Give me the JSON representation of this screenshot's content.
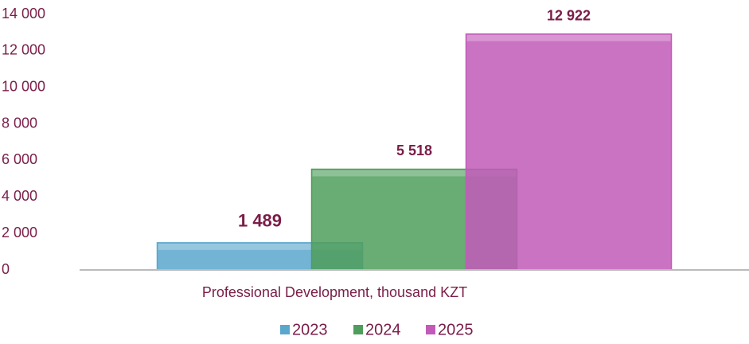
{
  "chart_data": {
    "type": "bar",
    "categories": [
      "Professional Development, thousand KZT"
    ],
    "series": [
      {
        "name": "2023",
        "color": "#5aa7cc",
        "values": [
          1489
        ],
        "value_labels": [
          "1 489"
        ]
      },
      {
        "name": "2024",
        "color": "#4f9d5c",
        "values": [
          5518
        ],
        "value_labels": [
          "5 518"
        ]
      },
      {
        "name": "2025",
        "color": "#c25bb8",
        "values": [
          12922
        ],
        "value_labels": [
          "12 922"
        ]
      }
    ],
    "ylim": [
      0,
      14000
    ],
    "yticks": [
      0,
      {
        "value": 2000,
        "label": "2 000"
      },
      {
        "value": 4000,
        "label": "4 000"
      },
      {
        "value": 6000,
        "label": "6 000"
      },
      {
        "value": 8000,
        "label": "8 000"
      },
      {
        "value": 10000,
        "label": "10 000"
      },
      {
        "value": 12000,
        "label": "12 000"
      },
      {
        "value": 14000,
        "label": "14 000"
      }
    ],
    "grid": false
  }
}
